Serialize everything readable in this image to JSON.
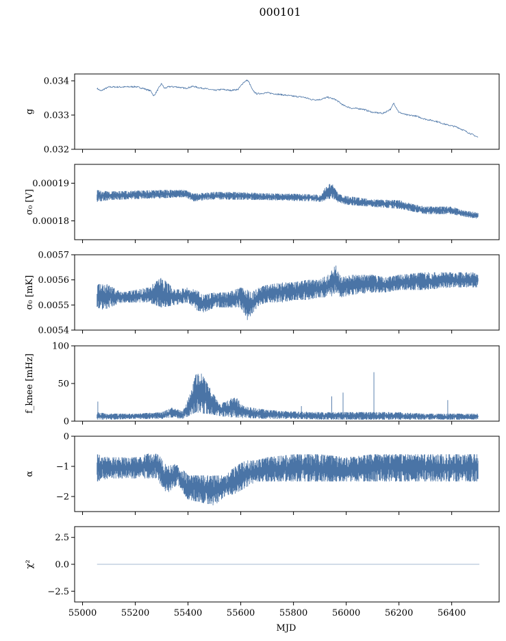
{
  "figure": {
    "title": "000101",
    "xlabel": "MJD",
    "line_color": "#4a74a6"
  },
  "chart_data": [
    {
      "type": "line",
      "ylabel": "g",
      "xlim": [
        54970,
        56580
      ],
      "ylim": [
        0.032,
        0.0342
      ],
      "xticks": [
        55000,
        55200,
        55400,
        55600,
        55800,
        56000,
        56200,
        56400
      ],
      "yticks": [
        0.032,
        0.033,
        0.034
      ],
      "ytick_labels": [
        "0.032",
        "0.033",
        "0.034"
      ],
      "series": [
        {
          "mode": "line",
          "x": [
            55055,
            55070,
            55080,
            55100,
            55130,
            55160,
            55200,
            55230,
            55260,
            55270,
            55290,
            55300,
            55310,
            55330,
            55360,
            55390,
            55420,
            55440,
            55460,
            55480,
            55500,
            55530,
            55560,
            55590,
            55610,
            55625,
            55632,
            55645,
            55660,
            55700,
            55750,
            55800,
            55840,
            55870,
            55900,
            55930,
            55960,
            55990,
            56020,
            56060,
            56100,
            56140,
            56170,
            56180,
            56200,
            56230,
            56260,
            56300,
            56340,
            56380,
            56420,
            56460,
            56500
          ],
          "y": [
            0.03378,
            0.0337,
            0.03375,
            0.03382,
            0.03382,
            0.03382,
            0.03383,
            0.03378,
            0.0337,
            0.03355,
            0.0338,
            0.03392,
            0.03378,
            0.03383,
            0.03382,
            0.03378,
            0.03384,
            0.0338,
            0.03378,
            0.03375,
            0.03372,
            0.03375,
            0.03372,
            0.03375,
            0.03395,
            0.03402,
            0.03395,
            0.03372,
            0.03362,
            0.03365,
            0.0336,
            0.03355,
            0.03352,
            0.03345,
            0.03345,
            0.03352,
            0.03345,
            0.03328,
            0.0332,
            0.03318,
            0.03308,
            0.03305,
            0.03318,
            0.03335,
            0.03308,
            0.033,
            0.03298,
            0.03288,
            0.03282,
            0.03272,
            0.03265,
            0.0325,
            0.03235
          ],
          "noise": 2.2e-05
        }
      ]
    },
    {
      "type": "line",
      "ylabel": "σ₀ [V]",
      "xlim": [
        54970,
        56580
      ],
      "ylim": [
        0.000175,
        0.000195
      ],
      "xticks": [
        55000,
        55200,
        55400,
        55600,
        55800,
        56000,
        56200,
        56400
      ],
      "yticks": [
        0.00018,
        0.00019
      ],
      "ytick_labels": [
        "0.00018",
        "0.00019"
      ],
      "series": [
        {
          "mode": "band",
          "x": [
            55055,
            55100,
            55200,
            55300,
            55390,
            55420,
            55500,
            55600,
            55700,
            55800,
            55880,
            55905,
            55920,
            55945,
            55970,
            56000,
            56100,
            56200,
            56250,
            56300,
            56400,
            56440,
            56500
          ],
          "lo": [
            0.000185,
            0.0001855,
            0.0001858,
            0.000186,
            0.0001863,
            0.0001852,
            0.0001857,
            0.0001856,
            0.0001855,
            0.0001853,
            0.0001852,
            0.000185,
            0.0001855,
            0.000186,
            0.0001848,
            0.0001843,
            0.0001837,
            0.0001832,
            0.0001825,
            0.0001818,
            0.0001818,
            0.0001812,
            0.0001805
          ],
          "hi": [
            0.0001882,
            0.0001878,
            0.000188,
            0.0001882,
            0.0001882,
            0.0001872,
            0.0001877,
            0.0001876,
            0.0001873,
            0.0001872,
            0.000187,
            0.0001868,
            0.0001888,
            0.0001902,
            0.0001872,
            0.0001866,
            0.0001857,
            0.0001855,
            0.0001845,
            0.0001838,
            0.0001838,
            0.0001828,
            0.0001822
          ]
        }
      ]
    },
    {
      "type": "line",
      "ylabel": "σ₀ [mK]",
      "xlim": [
        54970,
        56580
      ],
      "ylim": [
        0.0054,
        0.0057
      ],
      "xticks": [
        55000,
        55200,
        55400,
        55600,
        55800,
        56000,
        56200,
        56400
      ],
      "yticks": [
        0.0054,
        0.0055,
        0.0056,
        0.0057
      ],
      "ytick_labels": [
        "0.0054",
        "0.0055",
        "0.0056",
        "0.0057"
      ],
      "series": [
        {
          "mode": "band",
          "x": [
            55055,
            55080,
            55150,
            55250,
            55300,
            55350,
            55400,
            55430,
            55460,
            55500,
            55550,
            55600,
            55625,
            55640,
            55670,
            55700,
            55760,
            55800,
            55850,
            55900,
            55940,
            55960,
            55980,
            56020,
            56100,
            56150,
            56200,
            56300,
            56400,
            56500
          ],
          "lo": [
            0.00549,
            0.00548,
            0.00551,
            0.00551,
            0.00549,
            0.0055,
            0.00551,
            0.00548,
            0.00547,
            0.00549,
            0.00549,
            0.00549,
            0.00544,
            0.00546,
            0.0055,
            0.00551,
            0.00551,
            0.00552,
            0.00552,
            0.00553,
            0.00553,
            0.00555,
            0.00553,
            0.00554,
            0.00555,
            0.00555,
            0.00556,
            0.00556,
            0.00557,
            0.00557
          ],
          "hi": [
            0.00558,
            0.00559,
            0.00555,
            0.00557,
            0.00561,
            0.00556,
            0.00557,
            0.00556,
            0.00554,
            0.00555,
            0.00555,
            0.00557,
            0.00556,
            0.00555,
            0.00557,
            0.00558,
            0.00559,
            0.00559,
            0.0056,
            0.0056,
            0.00563,
            0.00566,
            0.00561,
            0.00562,
            0.00562,
            0.00561,
            0.00562,
            0.00563,
            0.00563,
            0.00563
          ]
        }
      ]
    },
    {
      "type": "line",
      "ylabel": "f_knee [mHz]",
      "xlim": [
        54970,
        56580
      ],
      "ylim": [
        0,
        100
      ],
      "xticks": [
        55000,
        55200,
        55400,
        55600,
        55800,
        56000,
        56200,
        56400
      ],
      "yticks": [
        0,
        50,
        100
      ],
      "ytick_labels": [
        "0",
        "50",
        "100"
      ],
      "series": [
        {
          "mode": "band",
          "x": [
            55055,
            55100,
            55200,
            55300,
            55340,
            55380,
            55410,
            55430,
            55450,
            55470,
            55490,
            55520,
            55550,
            55580,
            55610,
            55640,
            55700,
            55800,
            55900,
            56000,
            56100,
            56200,
            56300,
            56400,
            56500
          ],
          "lo": [
            2,
            2,
            3,
            3,
            5,
            3,
            8,
            12,
            10,
            10,
            9,
            7,
            5,
            5,
            4,
            4,
            3,
            3,
            2,
            2,
            2,
            2,
            2,
            2,
            2
          ],
          "hi": [
            12,
            10,
            10,
            12,
            18,
            13,
            38,
            62,
            64,
            52,
            40,
            22,
            28,
            33,
            20,
            18,
            15,
            13,
            12,
            12,
            12,
            12,
            10,
            10,
            10
          ],
          "spikes": [
            [
              55058,
              26
            ],
            [
              55830,
              20
            ],
            [
              55945,
              33
            ],
            [
              55988,
              38
            ],
            [
              56105,
              65
            ],
            [
              56385,
              28
            ]
          ]
        }
      ]
    },
    {
      "type": "line",
      "ylabel": "α",
      "xlim": [
        54970,
        56580
      ],
      "ylim": [
        -2.5,
        0
      ],
      "xticks": [
        55000,
        55200,
        55400,
        55600,
        55800,
        56000,
        56200,
        56400
      ],
      "yticks": [
        -2,
        -1,
        0
      ],
      "ytick_labels": [
        "−2",
        "−1",
        "0"
      ],
      "series": [
        {
          "mode": "band",
          "x": [
            55055,
            55100,
            55200,
            55280,
            55320,
            55360,
            55400,
            55450,
            55500,
            55540,
            55580,
            55620,
            55660,
            55700,
            55800,
            55900,
            56000,
            56100,
            56200,
            56300,
            56400,
            56500
          ],
          "lo": [
            -1.5,
            -1.4,
            -1.4,
            -1.4,
            -1.9,
            -1.6,
            -2.1,
            -2.2,
            -2.3,
            -2.0,
            -1.9,
            -1.7,
            -1.5,
            -1.5,
            -1.5,
            -1.5,
            -1.5,
            -1.5,
            -1.5,
            -1.5,
            -1.5,
            -1.5
          ],
          "hi": [
            -0.6,
            -0.7,
            -0.7,
            -0.5,
            -1.0,
            -0.9,
            -1.3,
            -1.3,
            -1.3,
            -1.3,
            -1.0,
            -0.8,
            -0.8,
            -0.7,
            -0.6,
            -0.6,
            -0.7,
            -0.6,
            -0.6,
            -0.6,
            -0.6,
            -0.6
          ]
        }
      ]
    },
    {
      "type": "line",
      "ylabel": "χ²",
      "xlim": [
        54970,
        56580
      ],
      "ylim": [
        -3.5,
        3.5
      ],
      "xticks": [
        55000,
        55200,
        55400,
        55600,
        55800,
        56000,
        56200,
        56400
      ],
      "yticks": [
        -2.5,
        0.0,
        2.5
      ],
      "ytick_labels": [
        "−2.5",
        "0.0",
        "2.5"
      ],
      "xtick_labels": [
        "55000",
        "55200",
        "55400",
        "55600",
        "55800",
        "56000",
        "56200",
        "56400"
      ],
      "series": [
        {
          "mode": "flat",
          "x": [
            55055,
            56505
          ],
          "y": [
            0,
            0
          ]
        }
      ]
    }
  ]
}
